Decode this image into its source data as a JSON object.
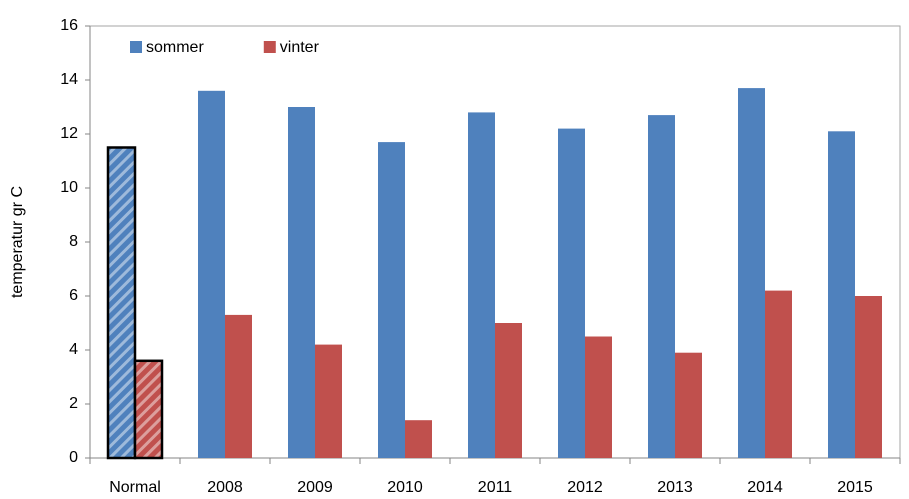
{
  "chart_data": {
    "type": "bar",
    "y_label": "temperatur gr C",
    "categories": [
      "Normal",
      "2008",
      "2009",
      "2010",
      "2011",
      "2012",
      "2013",
      "2014",
      "2015"
    ],
    "series": [
      {
        "name": "sommer",
        "color": "#4f81bd",
        "values": [
          11.5,
          13.6,
          13.0,
          11.7,
          12.8,
          12.2,
          12.7,
          13.7,
          12.1
        ]
      },
      {
        "name": "vinter",
        "color": "#c0504d",
        "values": [
          3.6,
          5.3,
          4.2,
          1.4,
          5.0,
          4.5,
          3.9,
          6.2,
          6.0
        ]
      }
    ],
    "ylim": [
      0,
      16
    ],
    "yticks": [
      0,
      2,
      4,
      6,
      8,
      10,
      12,
      14,
      16
    ],
    "grid": false,
    "legend": "top-left"
  }
}
